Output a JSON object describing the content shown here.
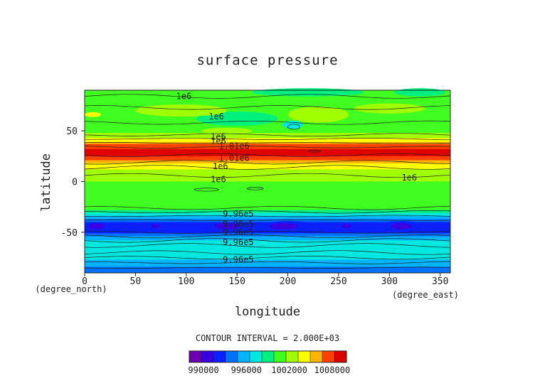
{
  "chart_data": {
    "type": "heatmap",
    "title": "surface pressure",
    "xlabel": "longitude",
    "ylabel": "latitude",
    "x_unit": "(degree_east)",
    "y_unit": "(degree_north)",
    "xlim": [
      0,
      360
    ],
    "ylim": [
      -90,
      90
    ],
    "x_ticks": [
      0,
      50,
      100,
      150,
      200,
      250,
      300,
      350
    ],
    "y_ticks": [
      -50,
      0,
      50
    ],
    "contour_interval_text": "CONTOUR INTERVAL = 2.000E+03",
    "colorbar": {
      "min": 988000,
      "max": 1010000,
      "tick_labels": [
        "990000",
        "996000",
        "1002000",
        "1008000"
      ],
      "tick_values": [
        990000,
        996000,
        1002000,
        1008000
      ],
      "colors": [
        "#6a00b0",
        "#3a00e0",
        "#0a20ff",
        "#0070ff",
        "#00b4ff",
        "#00e8e0",
        "#00f080",
        "#40ff20",
        "#a0ff00",
        "#ffff00",
        "#ffb400",
        "#ff4000",
        "#e00000"
      ]
    },
    "contour_labels": [
      {
        "text": "1e6",
        "lon": 90,
        "lat": 84
      },
      {
        "text": "1e6",
        "lon": 122,
        "lat": 64
      },
      {
        "text": "1e6",
        "lon": 124,
        "lat": 44
      },
      {
        "text": "1e6",
        "lon": 124,
        "lat": 40
      },
      {
        "text": "1.01e6",
        "lon": 132,
        "lat": 35
      },
      {
        "text": "1.01e6",
        "lon": 132,
        "lat": 23
      },
      {
        "text": "1e6",
        "lon": 126,
        "lat": 15
      },
      {
        "text": "1e6",
        "lon": 124,
        "lat": 2
      },
      {
        "text": "1e6",
        "lon": 312,
        "lat": 4
      },
      {
        "text": "9.96e5",
        "lon": 136,
        "lat": -32
      },
      {
        "text": "9.96e5",
        "lon": 136,
        "lat": -42
      },
      {
        "text": "9.96e5",
        "lon": 136,
        "lat": -50
      },
      {
        "text": "9.96e5",
        "lon": 136,
        "lat": -60
      },
      {
        "text": "9.96e5",
        "lon": 136,
        "lat": -77
      }
    ]
  }
}
